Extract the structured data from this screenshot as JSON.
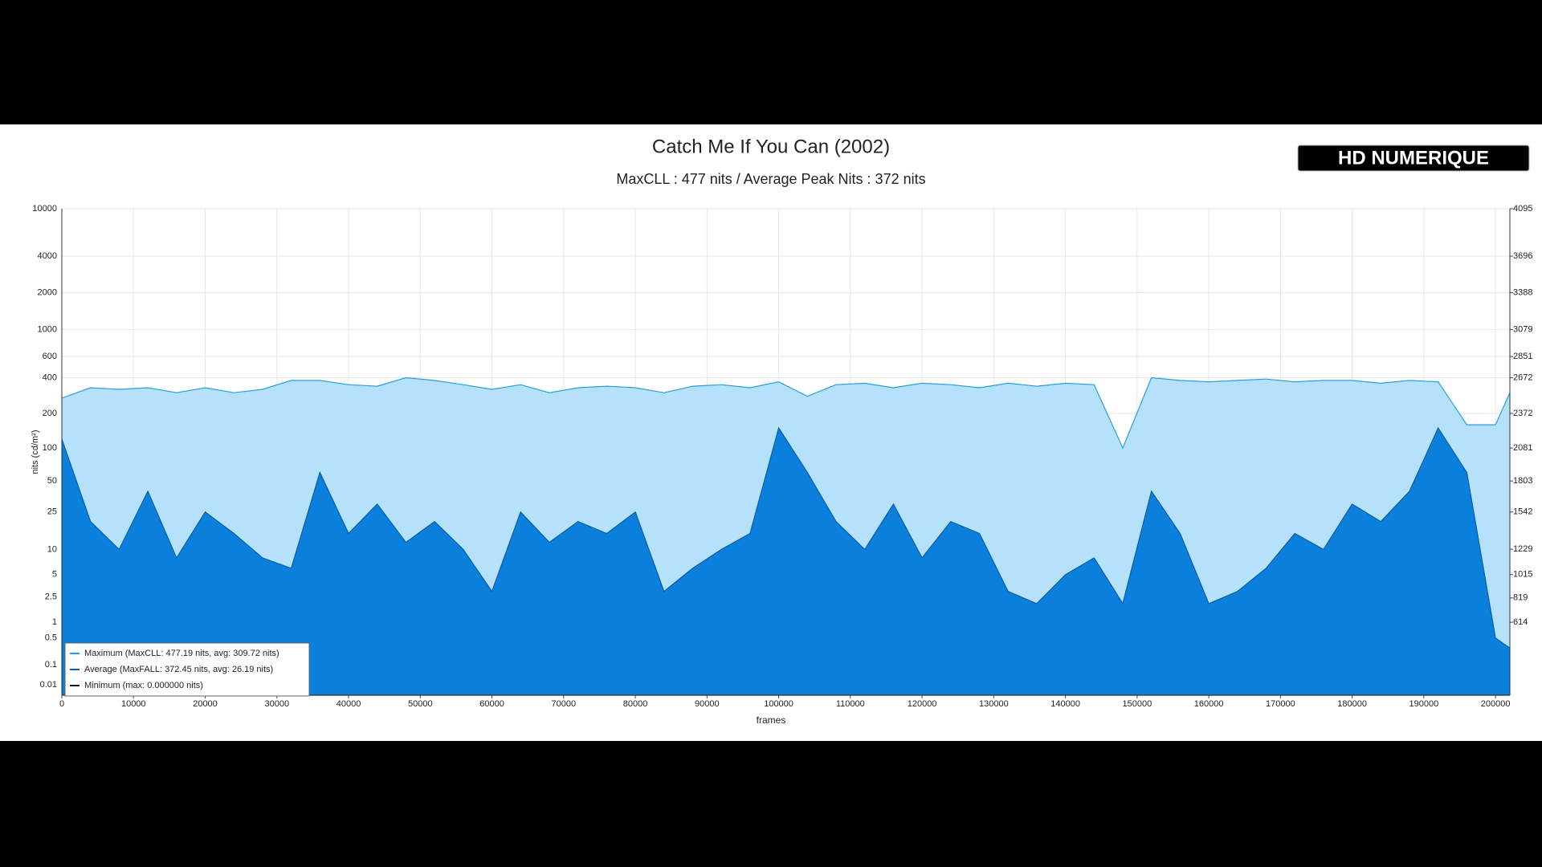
{
  "chart_data": {
    "type": "area",
    "title": "Catch Me If You Can (2002)",
    "subtitle": "MaxCLL : 477 nits / Average Peak Nits : 372 nits",
    "logo": "HD NUMERIQUE",
    "x_label": "frames",
    "y_label": "nits (cd/m²)",
    "scale": "pq",
    "grid": true,
    "legend": "bottom-left",
    "x": [
      0,
      4000,
      8000,
      12000,
      16000,
      20000,
      24000,
      28000,
      32000,
      36000,
      40000,
      44000,
      48000,
      52000,
      56000,
      60000,
      64000,
      68000,
      72000,
      76000,
      80000,
      84000,
      88000,
      92000,
      96000,
      100000,
      104000,
      108000,
      112000,
      116000,
      120000,
      124000,
      128000,
      132000,
      136000,
      140000,
      144000,
      148000,
      152000,
      156000,
      160000,
      164000,
      168000,
      172000,
      176000,
      180000,
      184000,
      188000,
      192000,
      196000,
      200000,
      202000
    ],
    "series": [
      {
        "name": "Maximum (MaxCLL: 477.19 nits, avg: 309.72 nits)",
        "color": "#2a9fe0",
        "fill": "#b5e1fa",
        "values": [
          270,
          330,
          320,
          330,
          300,
          330,
          300,
          320,
          380,
          380,
          350,
          340,
          400,
          380,
          350,
          320,
          350,
          300,
          330,
          340,
          330,
          300,
          340,
          350,
          330,
          370,
          280,
          350,
          360,
          330,
          360,
          350,
          330,
          360,
          340,
          360,
          350,
          100,
          400,
          380,
          370,
          380,
          390,
          370,
          380,
          380,
          360,
          380,
          370,
          160,
          160,
          300
        ]
      },
      {
        "name": "Average (MaxFALL: 372.45 nits, avg: 26.19 nits)",
        "color": "#0b5da8",
        "fill": "#0a80dc",
        "values": [
          120,
          20,
          10,
          40,
          8,
          25,
          15,
          8,
          6,
          60,
          15,
          30,
          12,
          20,
          10,
          3,
          25,
          12,
          20,
          15,
          25,
          3,
          6,
          10,
          15,
          150,
          60,
          20,
          10,
          30,
          8,
          20,
          15,
          3,
          2,
          5,
          8,
          2,
          40,
          15,
          2,
          3,
          6,
          15,
          10,
          30,
          20,
          40,
          150,
          60,
          0.5,
          0.3
        ]
      },
      {
        "name": "Minimum (max: 0.000000 nits)",
        "color": "#1a1a1a",
        "values": [
          0,
          0,
          0,
          0,
          0,
          0,
          0,
          0,
          0,
          0,
          0,
          0,
          0,
          0,
          0,
          0,
          0,
          0,
          0,
          0,
          0,
          0,
          0,
          0,
          0,
          0,
          0,
          0,
          0,
          0,
          0,
          0,
          0,
          0,
          0,
          0,
          0,
          0,
          0,
          0,
          0,
          0,
          0,
          0,
          0,
          0,
          0,
          0,
          0,
          0,
          0,
          0
        ]
      }
    ],
    "xlim": [
      0,
      202000
    ],
    "xticks": [
      0,
      10000,
      20000,
      30000,
      40000,
      50000,
      60000,
      70000,
      80000,
      90000,
      100000,
      110000,
      120000,
      130000,
      140000,
      150000,
      160000,
      170000,
      180000,
      190000,
      200000
    ],
    "ylim": [
      0,
      10000
    ],
    "yticks": [
      10000,
      4000,
      2000,
      1000,
      600,
      400,
      200,
      100,
      50,
      25,
      10,
      5,
      2.5,
      1,
      0.5,
      0.1,
      0.01
    ],
    "y2lim": [
      0,
      4095
    ],
    "y2ticks": [
      4095,
      3696,
      3388,
      3079,
      2851,
      2672,
      2372,
      2081,
      1803,
      1542,
      1229,
      1015,
      819,
      614
    ]
  }
}
